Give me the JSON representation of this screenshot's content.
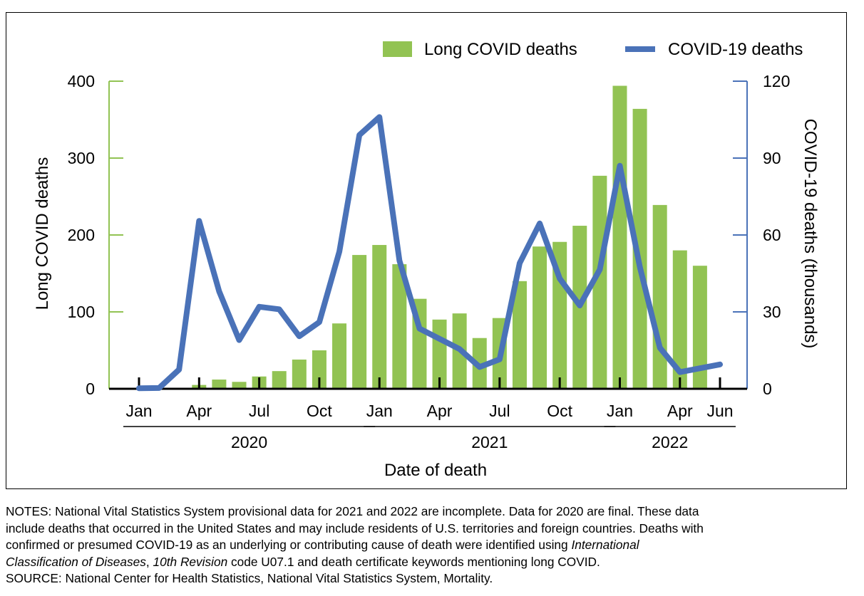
{
  "chart_data": {
    "type": "bar",
    "legend": {
      "placement": "top-right",
      "bars_label": "Long COVID deaths",
      "line_label": "COVID-19 deaths"
    },
    "y_left": {
      "label": "Long COVID deaths",
      "ylim": [
        0,
        400
      ],
      "ticks": [
        "0",
        "100",
        "200",
        "300",
        "400"
      ]
    },
    "y_right": {
      "label": "COVID-19 deaths (thousands)",
      "ylim": [
        0,
        120
      ],
      "ticks": [
        "0",
        "30",
        "60",
        "90",
        "120"
      ]
    },
    "x": {
      "label": "Date of death",
      "month_labels": [
        {
          "index": 0,
          "text": "Jan"
        },
        {
          "index": 3,
          "text": "Apr"
        },
        {
          "index": 6,
          "text": "Jul"
        },
        {
          "index": 9,
          "text": "Oct"
        },
        {
          "index": 12,
          "text": "Jan"
        },
        {
          "index": 15,
          "text": "Apr"
        },
        {
          "index": 18,
          "text": "Jul"
        },
        {
          "index": 21,
          "text": "Oct"
        },
        {
          "index": 24,
          "text": "Jan"
        },
        {
          "index": 27,
          "text": "Apr"
        },
        {
          "index": 29,
          "text": "Jun"
        }
      ],
      "years": [
        {
          "label": "2020",
          "start": 0,
          "end": 11
        },
        {
          "label": "2021",
          "start": 12,
          "end": 23
        },
        {
          "label": "2022",
          "start": 24,
          "end": 29
        }
      ]
    },
    "categories": [
      "Jan 2020",
      "Feb 2020",
      "Mar 2020",
      "Apr 2020",
      "May 2020",
      "Jun 2020",
      "Jul 2020",
      "Aug 2020",
      "Sep 2020",
      "Oct 2020",
      "Nov 2020",
      "Dec 2020",
      "Jan 2021",
      "Feb 2021",
      "Mar 2021",
      "Apr 2021",
      "May 2021",
      "Jun 2021",
      "Jul 2021",
      "Aug 2021",
      "Sep 2021",
      "Oct 2021",
      "Nov 2021",
      "Dec 2021",
      "Jan 2022",
      "Feb 2022",
      "Mar 2022",
      "Apr 2022",
      "May 2022",
      "Jun 2022"
    ],
    "series": [
      {
        "name": "Long COVID deaths",
        "type": "bar",
        "axis": "left",
        "color": "#92c353",
        "values": [
          0,
          0,
          0,
          5,
          12,
          9,
          16,
          23,
          38,
          50,
          85,
          174,
          187,
          162,
          117,
          90,
          98,
          66,
          92,
          140,
          185,
          191,
          212,
          277,
          394,
          364,
          239,
          180,
          160,
          null
        ]
      },
      {
        "name": "COVID-19 deaths",
        "type": "line",
        "axis": "right",
        "color": "#4a72b8",
        "values": [
          0.2,
          0.3,
          7.5,
          65.5,
          38,
          19,
          32,
          31,
          20.5,
          26,
          53.5,
          99,
          106,
          50,
          23.5,
          19.5,
          15.5,
          8.5,
          11.5,
          49,
          64.5,
          43,
          32.5,
          46.5,
          87,
          47.5,
          16,
          6.5,
          8,
          9.5
        ]
      }
    ]
  },
  "notes": {
    "line1": "NOTES: National Vital Statistics System provisional data for 2021 and 2022 are incomplete. Data for 2020 are final. These data",
    "line2": "include deaths that occurred in the United States and may include residents of U.S. territories and foreign countries. Deaths with",
    "line3a": "confirmed or presumed COVID-19 as an underlying or contributing cause of death were identified using ",
    "line3b": "International",
    "line4a": "Classification of Diseases",
    "line4b": ", ",
    "line4c": "10th Revision",
    "line4d": " code U07.1 and death certificate keywords mentioning long COVID.",
    "source": "SOURCE: National Center for Health Statistics, National Vital Statistics System, Mortality."
  }
}
